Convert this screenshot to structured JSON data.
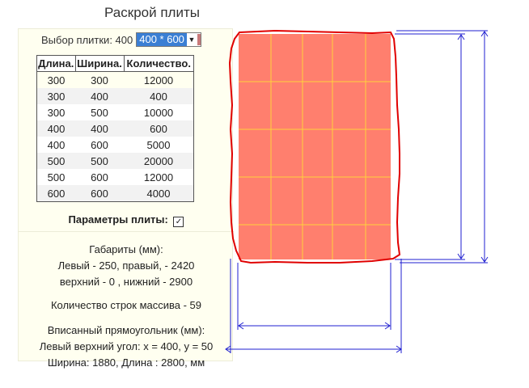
{
  "page_title": "Раскрой плиты",
  "picker": {
    "label": "Выбор плитки: 400",
    "selected": "400 * 600"
  },
  "table": {
    "headers": [
      "Длина.",
      "Ширина.",
      "Количество."
    ],
    "rows": [
      [
        "300",
        "300",
        "12000"
      ],
      [
        "300",
        "400",
        "400"
      ],
      [
        "300",
        "500",
        "10000"
      ],
      [
        "400",
        "400",
        "600"
      ],
      [
        "400",
        "600",
        "5000"
      ],
      [
        "500",
        "500",
        "20000"
      ],
      [
        "500",
        "600",
        "12000"
      ],
      [
        "600",
        "600",
        "4000"
      ]
    ]
  },
  "params_label": "Параметры плиты:",
  "params_checked": true,
  "gabarity": {
    "title": "Габариты (мм):",
    "line1": "Левый - 250, правый, - 2420",
    "line2": "верхний - 0 , нижний - 2900"
  },
  "rows_count": "Количество строк массива - 59",
  "inscribed": {
    "title": "Вписанный прямоугольник (мм):",
    "line1": "Левый верхний угол: x = 400, y = 50",
    "line2": "Ширина: 1880, Длина : 2800, мм"
  },
  "colors": {
    "slab_fill": "#ff7f6e",
    "grid_line": "#ffd23c",
    "contour": "#e00000",
    "dimension": "#1f1fd0"
  }
}
